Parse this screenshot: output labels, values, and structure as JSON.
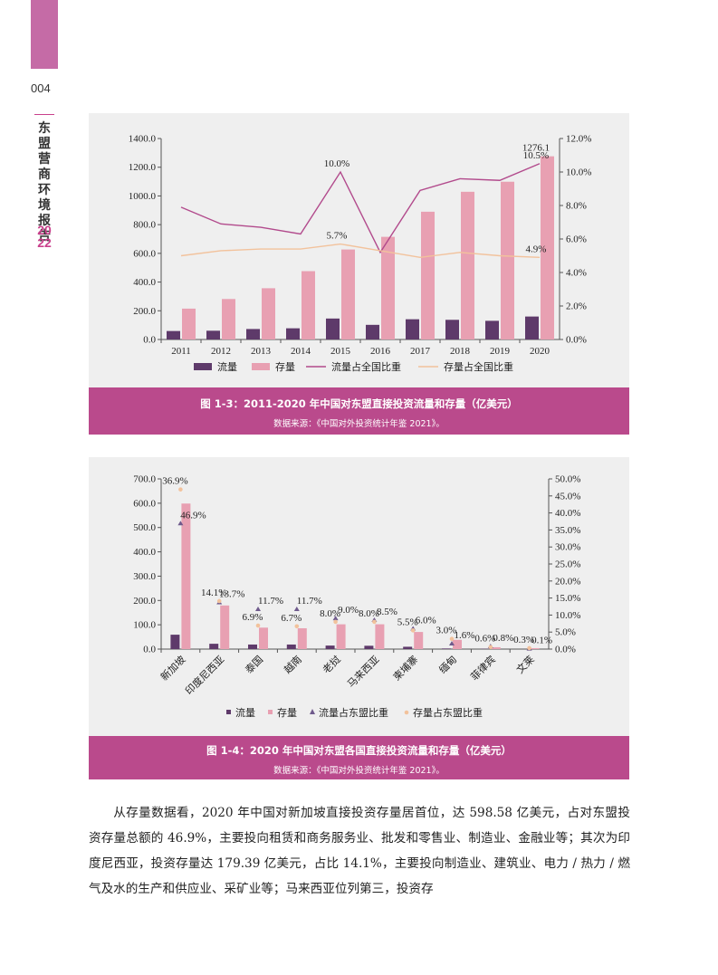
{
  "header": {
    "page_number": "004",
    "book_title": "东盟营商环境报告",
    "book_year": "2022"
  },
  "figure1": {
    "caption": "图 1-3：2011-2020 年中国对东盟直接投资流量和存量（亿美元）",
    "source": "数据来源：《中国对外投资统计年鉴 2021》。",
    "colors": {
      "flow": "#5e3a6a",
      "stock": "#e8a0b2",
      "flow_ratio": "#b24a8c",
      "stock_ratio": "#f2c29c"
    }
  },
  "figure2": {
    "caption": "图 1-4：2020 年中国对东盟各国直接投资流量和存量（亿美元）",
    "source": "数据来源：《中国对外投资统计年鉴 2021》。",
    "colors": {
      "flow": "#5e3a6a",
      "stock": "#e8a0b2",
      "flow_ratio": "#6f5a8c",
      "stock_ratio": "#f2c29c"
    }
  },
  "chart_data": [
    {
      "type": "bar",
      "categories": [
        "2011",
        "2012",
        "2013",
        "2014",
        "2015",
        "2016",
        "2017",
        "2018",
        "2019",
        "2020"
      ],
      "series": [
        {
          "name": "流量",
          "values": [
            59,
            61,
            73,
            78,
            146,
            102,
            141,
            137,
            130,
            160
          ]
        },
        {
          "name": "存量",
          "values": [
            215,
            282,
            357,
            476,
            627,
            715,
            890,
            1029,
            1099,
            1276.1
          ]
        },
        {
          "name": "流量占全国比重",
          "axis": "right",
          "values": [
            7.9,
            6.9,
            6.7,
            6.3,
            10.0,
            5.2,
            8.9,
            9.6,
            9.5,
            10.5
          ]
        },
        {
          "name": "存量占全国比重",
          "axis": "right",
          "values": [
            5.0,
            5.3,
            5.4,
            5.4,
            5.7,
            5.3,
            4.9,
            5.2,
            5.0,
            4.9
          ]
        }
      ],
      "y_ticks": [
        "0.0",
        "200.0",
        "400.0",
        "600.0",
        "800.0",
        "1000.0",
        "1200.0",
        "1400.0"
      ],
      "y2_ticks": [
        "0.0%",
        "2.0%",
        "4.0%",
        "6.0%",
        "8.0%",
        "10.0%",
        "12.0%"
      ],
      "ylim": [
        0,
        1400
      ],
      "y2lim": [
        0,
        12
      ],
      "annotations": [
        {
          "series": 1,
          "index": 9,
          "text": "1276.1"
        },
        {
          "series": 2,
          "index": 4,
          "text": "10.0%"
        },
        {
          "series": 2,
          "index": 9,
          "text": "10.5%"
        },
        {
          "series": 3,
          "index": 4,
          "text": "5.7%"
        },
        {
          "series": 3,
          "index": 9,
          "text": "4.9%"
        }
      ],
      "legend": "bottom"
    },
    {
      "type": "bar",
      "categories": [
        "新加坡",
        "印度尼西亚",
        "泰国",
        "越南",
        "老挝",
        "马来西亚",
        "柬埔寨",
        "缅甸",
        "菲律宾",
        "文莱"
      ],
      "series": [
        {
          "name": "流量",
          "values": [
            59.2,
            21.9,
            18.8,
            18.8,
            14.5,
            13.7,
            9.6,
            2.5,
            1.3,
            0.2
          ]
        },
        {
          "name": "存量",
          "values": [
            598.58,
            179.39,
            88.3,
            85.7,
            102.0,
            102.1,
            70.4,
            38.1,
            7.7,
            3.9
          ]
        },
        {
          "name": "流量占东盟比重",
          "axis": "right",
          "values": [
            36.9,
            13.7,
            11.7,
            11.7,
            9.0,
            8.5,
            6.0,
            1.6,
            0.8,
            0.1
          ]
        },
        {
          "name": "存量占东盟比重",
          "axis": "right",
          "values": [
            46.9,
            14.1,
            6.9,
            6.7,
            8.0,
            8.0,
            5.5,
            3.0,
            0.6,
            0.3
          ]
        }
      ],
      "point_labels": [
        {
          "text": "46.9%"
        },
        {
          "text": "36.9%"
        },
        {
          "text": "13.7%"
        },
        {
          "text": "14.1%"
        },
        {
          "text": "11.7%"
        },
        {
          "text": "6.9%"
        },
        {
          "text": "11.7%"
        },
        {
          "text": "6.7%"
        },
        {
          "text": "9.0%"
        },
        {
          "text": "8.0%"
        },
        {
          "text": "8.5%"
        },
        {
          "text": "8.0%"
        },
        {
          "text": "6.0%"
        },
        {
          "text": "5.5%"
        },
        {
          "text": "1.6%"
        },
        {
          "text": "3.0%"
        },
        {
          "text": "0.8%"
        },
        {
          "text": "0.6%"
        },
        {
          "text": "0.1%"
        },
        {
          "text": "0.3%"
        }
      ],
      "y_ticks": [
        "0.0",
        "100.0",
        "200.0",
        "300.0",
        "400.0",
        "500.0",
        "600.0",
        "700.0"
      ],
      "y2_ticks": [
        "0.0%",
        "5.0%",
        "10.0%",
        "15.0%",
        "20.0%",
        "25.0%",
        "30.0%",
        "35.0%",
        "40.0%",
        "45.0%",
        "50.0%"
      ],
      "ylim": [
        0,
        700
      ],
      "y2lim": [
        0,
        50
      ],
      "legend": "bottom"
    }
  ],
  "body": {
    "paragraph": "从存量数据看，2020 年中国对新加坡直接投资存量居首位，达 598.58 亿美元，占对东盟投资存量总额的 46.9%，主要投向租赁和商务服务业、批发和零售业、制造业、金融业等；其次为印度尼西亚，投资存量达 179.39 亿美元，占比 14.1%，主要投向制造业、建筑业、电力 / 热力 / 燃气及水的生产和供应业、采矿业等；马来西亚位列第三，投资存"
  }
}
